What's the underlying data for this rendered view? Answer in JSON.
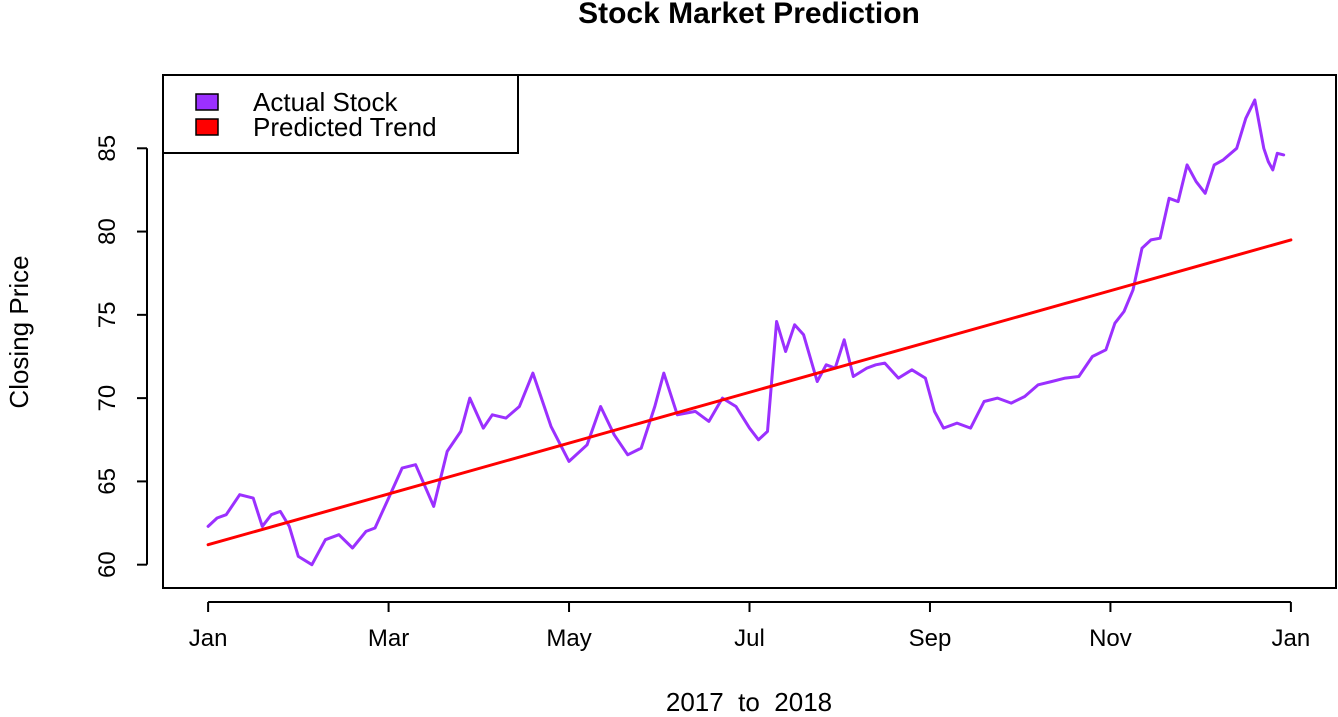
{
  "chart_data": {
    "type": "line",
    "title": "Stock Market Prediction",
    "xlabel": "2017  to  2018",
    "ylabel": "Closing Price",
    "x_ticks": [
      "Jan",
      "Mar",
      "May",
      "Jul",
      "Sep",
      "Nov",
      "Jan"
    ],
    "x_tick_months": [
      0,
      2,
      4,
      6,
      8,
      10,
      12
    ],
    "y_ticks": [
      "60",
      "65",
      "70",
      "75",
      "80",
      "85"
    ],
    "y_tick_values": [
      60,
      65,
      70,
      75,
      80,
      85
    ],
    "ylim": [
      58.6,
      89.4
    ],
    "xlim_months": [
      -0.5,
      12.5
    ],
    "grid": false,
    "legend_position": "top-left",
    "series": [
      {
        "name": "Actual Stock",
        "color": "#9B30FF",
        "x_months": [
          0.0,
          0.1,
          0.2,
          0.35,
          0.5,
          0.6,
          0.7,
          0.8,
          0.9,
          1.0,
          1.15,
          1.3,
          1.45,
          1.6,
          1.75,
          1.85,
          2.0,
          2.15,
          2.3,
          2.5,
          2.65,
          2.8,
          2.9,
          3.05,
          3.15,
          3.3,
          3.45,
          3.6,
          3.8,
          4.0,
          4.2,
          4.35,
          4.5,
          4.65,
          4.8,
          4.95,
          5.05,
          5.2,
          5.4,
          5.55,
          5.7,
          5.85,
          6.0,
          6.1,
          6.2,
          6.3,
          6.4,
          6.5,
          6.6,
          6.75,
          6.85,
          6.95,
          7.05,
          7.15,
          7.3,
          7.4,
          7.5,
          7.65,
          7.8,
          7.95,
          8.05,
          8.15,
          8.3,
          8.45,
          8.6,
          8.75,
          8.9,
          9.05,
          9.2,
          9.35,
          9.5,
          9.65,
          9.8,
          9.95,
          10.05,
          10.15,
          10.25,
          10.35,
          10.45,
          10.55,
          10.65,
          10.75,
          10.85,
          10.95,
          11.05,
          11.15,
          11.25,
          11.4,
          11.5,
          11.6,
          11.7,
          11.75,
          11.8,
          11.85,
          11.92
        ],
        "values": [
          62.3,
          62.8,
          63.0,
          64.2,
          64.0,
          62.3,
          63.0,
          63.2,
          62.3,
          60.5,
          60.0,
          61.5,
          61.8,
          61.0,
          62.0,
          62.2,
          64.0,
          65.8,
          66.0,
          63.5,
          66.8,
          68.0,
          70.0,
          68.2,
          69.0,
          68.8,
          69.5,
          71.5,
          68.3,
          66.2,
          67.2,
          69.5,
          67.8,
          66.6,
          67.0,
          69.5,
          71.5,
          69.0,
          69.2,
          68.6,
          70.0,
          69.5,
          68.2,
          67.5,
          68.0,
          74.6,
          72.8,
          74.4,
          73.8,
          71.0,
          72.0,
          71.8,
          73.5,
          71.3,
          71.8,
          72.0,
          72.1,
          71.2,
          71.7,
          71.2,
          69.2,
          68.2,
          68.5,
          68.2,
          69.8,
          70.0,
          69.7,
          70.1,
          70.8,
          71.0,
          71.2,
          71.3,
          72.5,
          72.9,
          74.5,
          75.2,
          76.5,
          79.0,
          79.5,
          79.6,
          82.0,
          81.8,
          84.0,
          83.0,
          82.3,
          84.0,
          84.3,
          85.0,
          86.8,
          87.9,
          85.0,
          84.2,
          83.7,
          84.7,
          84.6
        ]
      },
      {
        "name": "Predicted Trend",
        "color": "#FF0000",
        "x_months": [
          0.0,
          12.0
        ],
        "values": [
          61.2,
          79.5
        ]
      }
    ]
  }
}
